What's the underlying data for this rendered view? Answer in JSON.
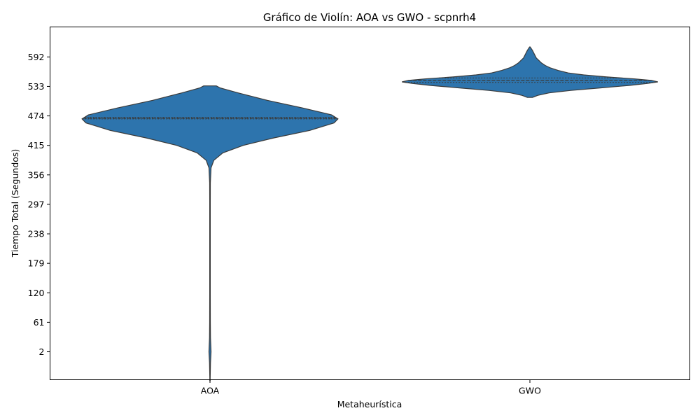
{
  "chart_data": {
    "type": "violin",
    "title": "Gráfico de Violín: AOA vs GWO - scpnrh4",
    "xlabel": "Metaheurística",
    "ylabel": "Tiempo Total (Segundos)",
    "categories": [
      "AOA",
      "GWO"
    ],
    "yticks": [
      2,
      61,
      120,
      179,
      238,
      297,
      356,
      415,
      474,
      533,
      592
    ],
    "ylim": [
      -54,
      652
    ],
    "fill_color": "#2d74ad",
    "series": [
      {
        "category": "AOA",
        "min": -56,
        "max": 534,
        "quartiles": [
          468,
          469.5,
          471
        ],
        "density": [
          [
            -56,
            0.001
          ],
          [
            -20,
            0.004
          ],
          [
            2,
            0.008
          ],
          [
            30,
            0.004
          ],
          [
            61,
            0.003
          ],
          [
            120,
            0.002
          ],
          [
            179,
            0.002
          ],
          [
            238,
            0.002
          ],
          [
            297,
            0.002
          ],
          [
            340,
            0.003
          ],
          [
            370,
            0.008
          ],
          [
            385,
            0.03
          ],
          [
            400,
            0.1
          ],
          [
            415,
            0.26
          ],
          [
            430,
            0.5
          ],
          [
            445,
            0.78
          ],
          [
            460,
            0.97
          ],
          [
            468,
            1.0
          ],
          [
            476,
            0.95
          ],
          [
            490,
            0.72
          ],
          [
            505,
            0.45
          ],
          [
            520,
            0.22
          ],
          [
            530,
            0.08
          ],
          [
            534,
            0.05
          ]
        ]
      },
      {
        "category": "GWO",
        "min": 511,
        "max": 612,
        "quartiles": [
          541,
          545,
          550
        ],
        "density": [
          [
            511,
            0.02
          ],
          [
            515,
            0.06
          ],
          [
            520,
            0.15
          ],
          [
            525,
            0.32
          ],
          [
            530,
            0.55
          ],
          [
            535,
            0.78
          ],
          [
            539,
            0.92
          ],
          [
            542,
            1.0
          ],
          [
            545,
            0.95
          ],
          [
            548,
            0.82
          ],
          [
            552,
            0.6
          ],
          [
            556,
            0.42
          ],
          [
            560,
            0.3
          ],
          [
            565,
            0.22
          ],
          [
            570,
            0.16
          ],
          [
            575,
            0.12
          ],
          [
            580,
            0.09
          ],
          [
            585,
            0.07
          ],
          [
            590,
            0.05
          ],
          [
            595,
            0.04
          ],
          [
            600,
            0.03
          ],
          [
            605,
            0.02
          ],
          [
            609,
            0.01
          ],
          [
            612,
            0.003
          ]
        ]
      }
    ]
  }
}
